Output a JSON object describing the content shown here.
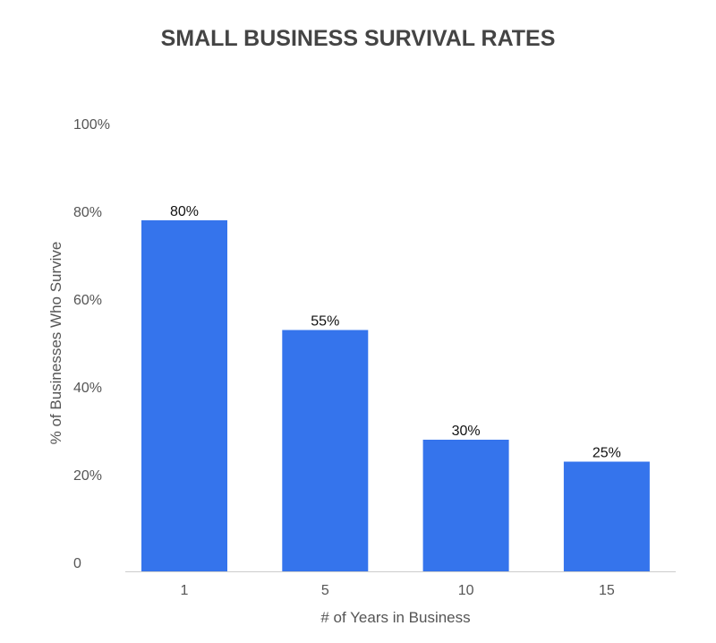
{
  "chart_data": {
    "type": "bar",
    "title": "SMALL BUSINESS SURVIVAL RATES",
    "xlabel": "# of Years in Business",
    "ylabel": "% of Businesses Who Survive",
    "categories": [
      "1",
      "5",
      "10",
      "15"
    ],
    "values": [
      80,
      55,
      30,
      25
    ],
    "data_labels": [
      "80%",
      "55%",
      "30%",
      "25%"
    ],
    "yticks": [
      0,
      20,
      40,
      60,
      80,
      100
    ],
    "ytick_labels": [
      "0",
      "20%",
      "40%",
      "60%",
      "80%",
      "100%"
    ],
    "ylim": [
      0,
      100
    ],
    "grid": false,
    "legend": "none",
    "bar_color": "#3574ec"
  }
}
